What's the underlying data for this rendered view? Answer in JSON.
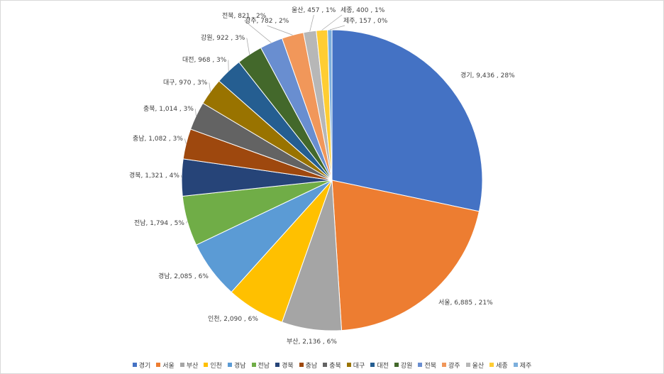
{
  "chart_data": {
    "type": "pie",
    "title": "",
    "separator": " , ",
    "slices": [
      {
        "label": "경기",
        "value": 9436,
        "value_text": "9,436",
        "percent": "28%",
        "color": "#4472C4"
      },
      {
        "label": "서울",
        "value": 6885,
        "value_text": "6,885",
        "percent": "21%",
        "color": "#ED7D31"
      },
      {
        "label": "부산",
        "value": 2136,
        "value_text": "2,136",
        "percent": "6%",
        "color": "#A5A5A5"
      },
      {
        "label": "인천",
        "value": 2090,
        "value_text": "2,090",
        "percent": "6%",
        "color": "#FFC000"
      },
      {
        "label": "경남",
        "value": 2085,
        "value_text": "2,085",
        "percent": "6%",
        "color": "#5B9BD5"
      },
      {
        "label": "전남",
        "value": 1794,
        "value_text": "1,794",
        "percent": "5%",
        "color": "#70AD47"
      },
      {
        "label": "경북",
        "value": 1321,
        "value_text": "1,321",
        "percent": "4%",
        "color": "#264478"
      },
      {
        "label": "충남",
        "value": 1082,
        "value_text": "1,082",
        "percent": "3%",
        "color": "#9E480E"
      },
      {
        "label": "충북",
        "value": 1014,
        "value_text": "1,014",
        "percent": "3%",
        "color": "#636363"
      },
      {
        "label": "대구",
        "value": 970,
        "value_text": "970",
        "percent": "3%",
        "color": "#997300"
      },
      {
        "label": "대전",
        "value": 968,
        "value_text": "968",
        "percent": "3%",
        "color": "#255E91"
      },
      {
        "label": "강원",
        "value": 922,
        "value_text": "922",
        "percent": "3%",
        "color": "#43682B"
      },
      {
        "label": "전북",
        "value": 821,
        "value_text": "821",
        "percent": "2%",
        "color": "#698ED0"
      },
      {
        "label": "광주",
        "value": 782,
        "value_text": "782",
        "percent": "2%",
        "color": "#F1975A"
      },
      {
        "label": "울산",
        "value": 457,
        "value_text": "457",
        "percent": "1%",
        "color": "#B7B7B7"
      },
      {
        "label": "세종",
        "value": 400,
        "value_text": "400",
        "percent": "1%",
        "color": "#FFCD33"
      },
      {
        "label": "제주",
        "value": 157,
        "value_text": "157",
        "percent": "0%",
        "color": "#7CAFDD"
      }
    ],
    "legend_position": "bottom",
    "start_angle": "12 o'clock, clockwise"
  }
}
